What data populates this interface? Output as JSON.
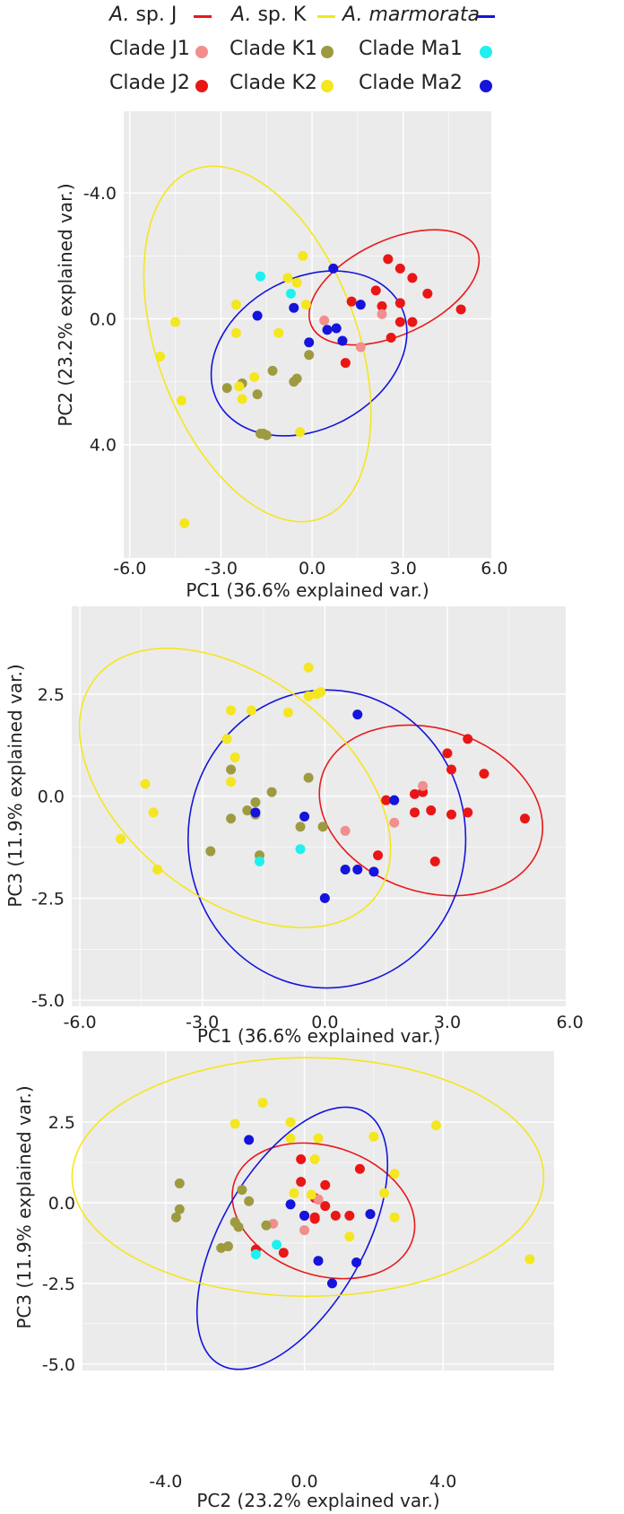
{
  "legend": {
    "species": [
      {
        "genus": "A.",
        "name": " sp. J",
        "italic_name": false,
        "color": "#e8191b"
      },
      {
        "genus": "A.",
        "name": " sp. K",
        "italic_name": false,
        "color": "#f4e61f"
      },
      {
        "genus": "A.",
        "name": " marmorata",
        "italic_name": true,
        "color": "#1414dc"
      }
    ],
    "clades": [
      {
        "label": "Clade J1",
        "color": "#f28e8e"
      },
      {
        "label": "Clade K1",
        "color": "#9e9a40"
      },
      {
        "label": "Clade Ma1",
        "color": "#1ef0f0"
      },
      {
        "label": "Clade J2",
        "color": "#ea1616"
      },
      {
        "label": "Clade K2",
        "color": "#f4e61f"
      },
      {
        "label": "Clade Ma2",
        "color": "#1414dc"
      }
    ]
  },
  "colors": {
    "panel_bg": "#ebebeb",
    "grid": "#ffffff",
    "J1": "#f28e8e",
    "J2": "#ea1616",
    "K1": "#9e9a40",
    "K2": "#f4e61f",
    "Ma1": "#1ef0f0",
    "Ma2": "#1414dc",
    "ellipse_J": "#e8191b",
    "ellipse_K": "#f4e61f",
    "ellipse_Ma": "#1414dc"
  },
  "chart_data": [
    {
      "type": "scatter",
      "title": "",
      "xlabel": "PC1 (36.6% explained var.)",
      "ylabel": "PC2 (23.2% explained var.)",
      "xlim": [
        -6.2,
        5.9
      ],
      "ylim": [
        7.6,
        -6.6
      ],
      "y_inverted": true,
      "xticks": [
        "-6.0",
        "-3.0",
        "0.0",
        "3.0",
        "6.0"
      ],
      "xtick_values": [
        -6,
        -3,
        0,
        3,
        6
      ],
      "yticks": [
        "-4.0",
        "0.0",
        "4.0"
      ],
      "ytick_values": [
        -4,
        0,
        4
      ],
      "grid": true,
      "series": [
        {
          "group": "J2",
          "points": [
            [
              2.5,
              -1.9
            ],
            [
              2.9,
              -1.6
            ],
            [
              3.3,
              -1.3
            ],
            [
              2.1,
              -0.9
            ],
            [
              3.8,
              -0.8
            ],
            [
              1.3,
              -0.55
            ],
            [
              2.3,
              -0.4
            ],
            [
              2.9,
              -0.5
            ],
            [
              4.9,
              -0.3
            ],
            [
              2.9,
              0.1
            ],
            [
              3.3,
              0.1
            ],
            [
              2.6,
              0.6
            ],
            [
              1.1,
              1.4
            ]
          ]
        },
        {
          "group": "J1",
          "points": [
            [
              0.4,
              0.05
            ],
            [
              2.3,
              -0.15
            ],
            [
              1.6,
              0.9
            ]
          ]
        },
        {
          "group": "K1",
          "points": [
            [
              -0.1,
              1.15
            ],
            [
              -0.5,
              1.9
            ],
            [
              -0.6,
              2.0
            ],
            [
              -1.3,
              1.65
            ],
            [
              -1.8,
              2.4
            ],
            [
              -2.3,
              2.05
            ],
            [
              -2.8,
              2.2
            ],
            [
              -1.7,
              3.65
            ],
            [
              -1.5,
              3.7
            ],
            [
              -1.6,
              3.65
            ]
          ]
        },
        {
          "group": "K2",
          "points": [
            [
              -4.2,
              6.5
            ],
            [
              -0.4,
              3.6
            ],
            [
              -4.3,
              2.6
            ],
            [
              -2.3,
              2.55
            ],
            [
              -2.4,
              2.15
            ],
            [
              -1.9,
              1.85
            ],
            [
              -5.0,
              1.2
            ],
            [
              -2.5,
              0.45
            ],
            [
              -1.1,
              0.45
            ],
            [
              -4.5,
              0.1
            ],
            [
              -2.5,
              -0.45
            ],
            [
              -0.2,
              -0.45
            ],
            [
              -0.5,
              -1.15
            ],
            [
              -0.8,
              -1.3
            ],
            [
              -0.3,
              -2.0
            ]
          ]
        },
        {
          "group": "Ma1",
          "points": [
            [
              -0.7,
              -0.8
            ],
            [
              -1.7,
              -1.35
            ]
          ]
        },
        {
          "group": "Ma2",
          "points": [
            [
              -0.1,
              0.75
            ],
            [
              0.5,
              0.35
            ],
            [
              0.8,
              0.3
            ],
            [
              1.0,
              0.7
            ],
            [
              1.6,
              -0.45
            ],
            [
              -1.8,
              -0.1
            ],
            [
              -0.6,
              -0.35
            ],
            [
              0.7,
              -1.6
            ]
          ]
        }
      ],
      "ellipses": [
        {
          "group": "J",
          "center": [
            2.7,
            -1.0
          ],
          "rx": 3.0,
          "ry": 1.5,
          "angle": -25
        },
        {
          "group": "Ma",
          "center": [
            -0.1,
            1.1
          ],
          "rx": 3.4,
          "ry": 2.4,
          "angle": -28
        },
        {
          "group": "K",
          "center": [
            -1.8,
            0.8
          ],
          "rx": 3.3,
          "ry": 5.9,
          "angle": -20
        }
      ]
    },
    {
      "type": "scatter",
      "title": "",
      "xlabel": "PC1 (36.6% explained var.)",
      "ylabel": "PC3 (11.9% explained var.)",
      "xlim": [
        -6.2,
        5.9
      ],
      "ylim": [
        -5.15,
        4.65
      ],
      "xticks": [
        "-6.0",
        "-3.0",
        "0.0",
        "3.0",
        "6.0"
      ],
      "xtick_values": [
        -6,
        -3,
        0,
        3,
        6
      ],
      "yticks": [
        "2.5",
        "0.0",
        "-2.5",
        "-5.0"
      ],
      "ytick_values": [
        2.5,
        0,
        -2.5,
        -5
      ],
      "grid": true,
      "series": [
        {
          "group": "J2",
          "points": [
            [
              3.5,
              1.4
            ],
            [
              3.0,
              1.05
            ],
            [
              3.1,
              0.65
            ],
            [
              3.9,
              0.55
            ],
            [
              2.2,
              0.05
            ],
            [
              2.4,
              0.1
            ],
            [
              1.5,
              -0.1
            ],
            [
              2.2,
              -0.4
            ],
            [
              2.6,
              -0.35
            ],
            [
              3.1,
              -0.45
            ],
            [
              3.5,
              -0.4
            ],
            [
              4.9,
              -0.55
            ],
            [
              1.3,
              -1.45
            ],
            [
              2.7,
              -1.6
            ]
          ]
        },
        {
          "group": "J1",
          "points": [
            [
              2.4,
              0.25
            ],
            [
              1.7,
              -0.65
            ],
            [
              0.5,
              -0.85
            ]
          ]
        },
        {
          "group": "K1",
          "points": [
            [
              -2.3,
              0.65
            ],
            [
              -0.4,
              0.45
            ],
            [
              -1.3,
              0.1
            ],
            [
              -1.7,
              -0.15
            ],
            [
              -1.9,
              -0.35
            ],
            [
              -1.7,
              -0.45
            ],
            [
              -2.3,
              -0.55
            ],
            [
              -0.6,
              -0.75
            ],
            [
              -0.05,
              -0.75
            ],
            [
              -2.8,
              -1.35
            ],
            [
              -1.6,
              -1.45
            ]
          ]
        },
        {
          "group": "K2",
          "points": [
            [
              -0.4,
              3.15
            ],
            [
              -0.1,
              2.55
            ],
            [
              -0.2,
              2.5
            ],
            [
              -0.4,
              2.45
            ],
            [
              -2.3,
              2.1
            ],
            [
              -1.8,
              2.1
            ],
            [
              -0.9,
              2.05
            ],
            [
              -2.4,
              1.4
            ],
            [
              -2.2,
              0.95
            ],
            [
              -2.3,
              0.35
            ],
            [
              -4.4,
              0.3
            ],
            [
              -4.2,
              -0.4
            ],
            [
              -5.0,
              -1.05
            ],
            [
              -4.1,
              -1.8
            ]
          ]
        },
        {
          "group": "Ma1",
          "points": [
            [
              -0.6,
              -1.3
            ],
            [
              -1.6,
              -1.6
            ]
          ]
        },
        {
          "group": "Ma2",
          "points": [
            [
              0.8,
              2.0
            ],
            [
              1.7,
              -0.1
            ],
            [
              -0.5,
              -0.5
            ],
            [
              -1.7,
              -0.4
            ],
            [
              0.5,
              -1.8
            ],
            [
              0.8,
              -1.8
            ],
            [
              1.2,
              -1.85
            ],
            [
              0.0,
              -2.5
            ]
          ]
        }
      ],
      "ellipses": [
        {
          "group": "J",
          "center": [
            2.6,
            -0.35
          ],
          "rx": 2.8,
          "ry": 2.0,
          "angle": 18
        },
        {
          "group": "Ma",
          "center": [
            0.05,
            -1.05
          ],
          "rx": 3.4,
          "ry": 3.65,
          "angle": 0
        },
        {
          "group": "K",
          "center": [
            -2.2,
            0.2
          ],
          "rx": 4.35,
          "ry": 2.7,
          "angle": 38
        }
      ]
    },
    {
      "type": "scatter",
      "title": "",
      "xlabel": "PC2 (23.2% explained var.)",
      "ylabel": "PC3 (11.9% explained var.)",
      "xlim": [
        -6.4,
        7.2
      ],
      "ylim": [
        -5.2,
        4.7
      ],
      "xticks": [
        "-4.0",
        "0.0",
        "4.0"
      ],
      "xtick_values": [
        -4,
        0,
        4
      ],
      "yticks": [
        "2.5",
        "0.0",
        "-2.5",
        "-5.0"
      ],
      "ytick_values": [
        2.5,
        0,
        -2.5,
        -5
      ],
      "grid": true,
      "series": [
        {
          "group": "J2",
          "points": [
            [
              -0.1,
              1.35
            ],
            [
              1.6,
              1.05
            ],
            [
              -0.1,
              0.65
            ],
            [
              0.6,
              0.55
            ],
            [
              0.3,
              0.15
            ],
            [
              0.4,
              0.1
            ],
            [
              0.6,
              -0.1
            ],
            [
              0.0,
              -0.4
            ],
            [
              0.3,
              -0.45
            ],
            [
              0.9,
              -0.4
            ],
            [
              1.3,
              -0.4
            ],
            [
              1.9,
              -0.35
            ],
            [
              -0.6,
              -1.55
            ],
            [
              -1.4,
              -1.45
            ],
            [
              0.3,
              -0.5
            ]
          ]
        },
        {
          "group": "J1",
          "points": [
            [
              0.0,
              -0.85
            ],
            [
              -0.9,
              -0.65
            ],
            [
              0.4,
              0.1
            ]
          ]
        },
        {
          "group": "K1",
          "points": [
            [
              -3.6,
              0.6
            ],
            [
              -1.8,
              0.4
            ],
            [
              -1.6,
              0.05
            ],
            [
              -3.6,
              -0.2
            ],
            [
              -3.7,
              -0.45
            ],
            [
              -2.0,
              -0.6
            ],
            [
              -1.9,
              -0.75
            ],
            [
              -1.1,
              -0.7
            ],
            [
              -2.2,
              -1.35
            ],
            [
              -2.4,
              -1.4
            ]
          ]
        },
        {
          "group": "K2",
          "points": [
            [
              -1.2,
              3.1
            ],
            [
              -0.4,
              2.5
            ],
            [
              -2.0,
              2.45
            ],
            [
              3.8,
              2.4
            ],
            [
              2.0,
              2.05
            ],
            [
              -0.4,
              2.0
            ],
            [
              0.4,
              2.0
            ],
            [
              2.6,
              0.9
            ],
            [
              0.3,
              1.35
            ],
            [
              2.3,
              0.3
            ],
            [
              0.2,
              0.25
            ],
            [
              -0.3,
              0.3
            ],
            [
              2.6,
              -0.45
            ],
            [
              1.3,
              -1.05
            ],
            [
              6.5,
              -1.75
            ]
          ]
        },
        {
          "group": "Ma1",
          "points": [
            [
              -0.8,
              -1.3
            ],
            [
              -1.4,
              -1.6
            ]
          ]
        },
        {
          "group": "Ma2",
          "points": [
            [
              -1.6,
              1.95
            ],
            [
              -0.4,
              -0.05
            ],
            [
              0.0,
              -0.4
            ],
            [
              1.9,
              -0.35
            ],
            [
              0.4,
              -1.8
            ],
            [
              1.5,
              -1.85
            ],
            [
              0.8,
              -2.5
            ]
          ]
        }
      ],
      "ellipses": [
        {
          "group": "J",
          "center": [
            0.55,
            -0.25
          ],
          "rx": 2.7,
          "ry": 2.0,
          "angle": 18
        },
        {
          "group": "Ma",
          "center": [
            -0.35,
            -1.1
          ],
          "rx": 4.2,
          "ry": 2.2,
          "angle": -60
        },
        {
          "group": "K",
          "center": [
            0.1,
            0.8
          ],
          "rx": 6.8,
          "ry": 3.7,
          "angle": 0
        }
      ]
    }
  ]
}
